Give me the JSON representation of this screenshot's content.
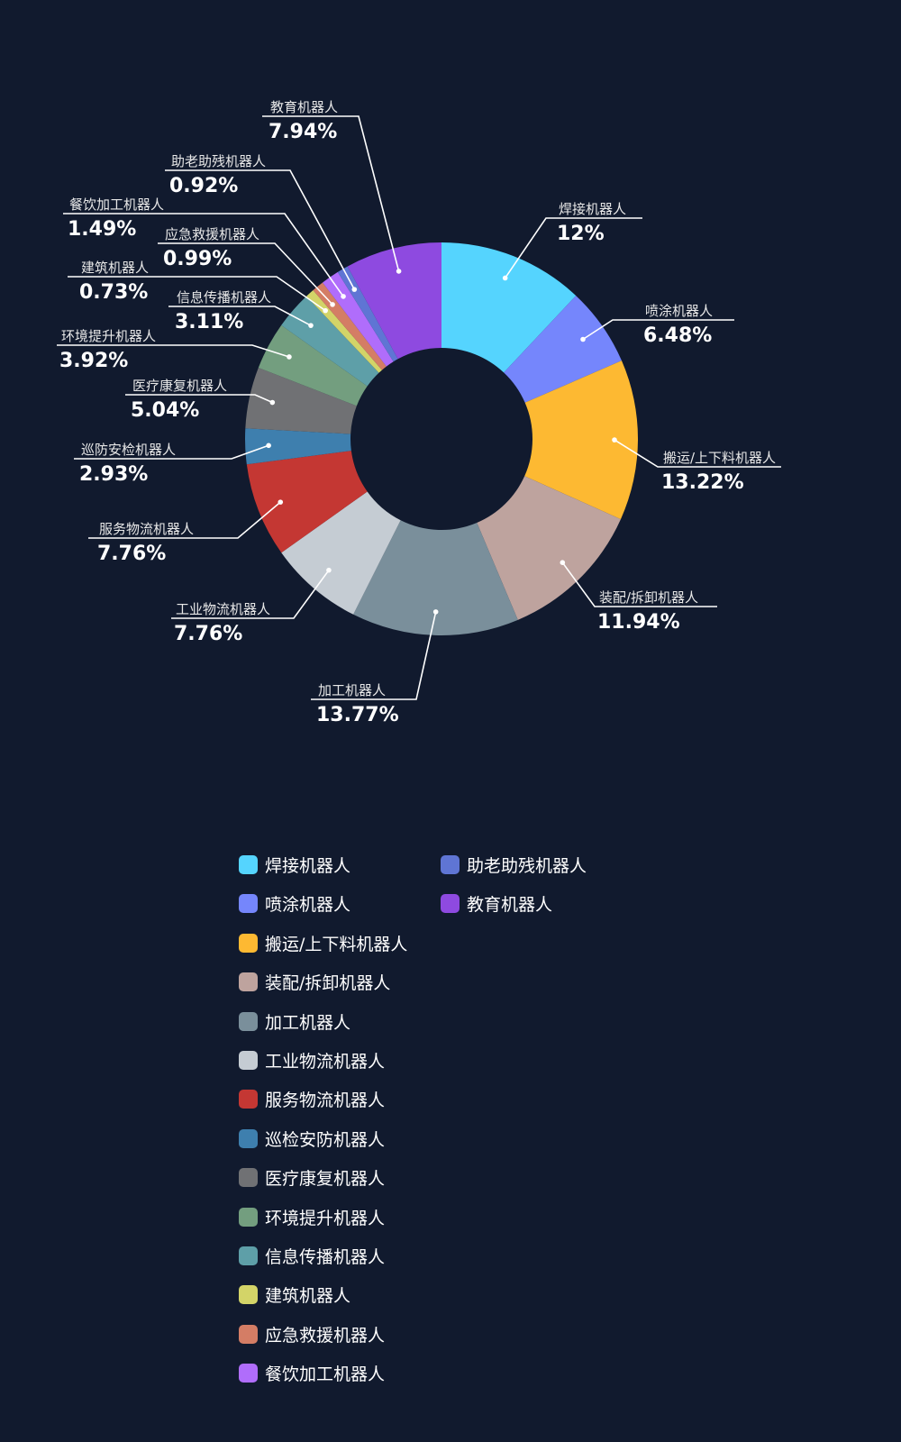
{
  "chart_data": {
    "type": "pie",
    "donut": true,
    "unit": "%",
    "slices": [
      {
        "name": "焊接机器人",
        "label": "焊接机器人",
        "value": 12,
        "value_text": "12%",
        "color": "#55d4fe"
      },
      {
        "name": "喷涂机器人",
        "label": "喷涂机器人",
        "value": 6.48,
        "value_text": "6.48%",
        "color": "#7586fc"
      },
      {
        "name": "搬运/上下料机器人",
        "label": "搬运/上下料机器人",
        "value": 13.22,
        "value_text": "13.22%",
        "color": "#fdb932"
      },
      {
        "name": "装配/拆卸机器人",
        "label": "装配/拆卸机器人",
        "value": 11.94,
        "value_text": "11.94%",
        "color": "#bea39e"
      },
      {
        "name": "加工机器人",
        "label": "加工机器人",
        "value": 13.77,
        "value_text": "13.77%",
        "color": "#7a8f9b"
      },
      {
        "name": "工业物流机器人",
        "label": "工业物流机器人",
        "value": 7.76,
        "value_text": "7.76%",
        "color": "#c5ccd3"
      },
      {
        "name": "服务物流机器人",
        "label": "服务物流机器人",
        "value": 7.76,
        "value_text": "7.76%",
        "color": "#c43733"
      },
      {
        "name": "巡检安防机器人",
        "label": "巡防安检机器人",
        "value": 2.93,
        "value_text": "2.93%",
        "color": "#3e7fae"
      },
      {
        "name": "医疗康复机器人",
        "label": "医疗康复机器人",
        "value": 5.04,
        "value_text": "5.04%",
        "color": "#707174"
      },
      {
        "name": "环境提升机器人",
        "label": "环境提升机器人",
        "value": 3.92,
        "value_text": "3.92%",
        "color": "#739e7f"
      },
      {
        "name": "信息传播机器人",
        "label": "信息传播机器人",
        "value": 3.11,
        "value_text": "3.11%",
        "color": "#5e9fa8"
      },
      {
        "name": "建筑机器人",
        "label": "建筑机器人",
        "value": 0.73,
        "value_text": "0.73%",
        "color": "#d3d468"
      },
      {
        "name": "应急救援机器人",
        "label": "应急救援机器人",
        "value": 0.99,
        "value_text": "0.99%",
        "color": "#d47d65"
      },
      {
        "name": "餐饮加工机器人",
        "label": "餐饮加工机器人",
        "value": 1.49,
        "value_text": "1.49%",
        "color": "#b06dfb"
      },
      {
        "name": "助老助残机器人",
        "label": "助老助残机器人",
        "value": 0.92,
        "value_text": "0.92%",
        "color": "#5f75d4"
      },
      {
        "name": "教育机器人",
        "label": "教育机器人",
        "value": 7.94,
        "value_text": "7.94%",
        "color": "#8e4ae0"
      }
    ],
    "legend_placement": "bottom",
    "background": "#111a2e"
  }
}
